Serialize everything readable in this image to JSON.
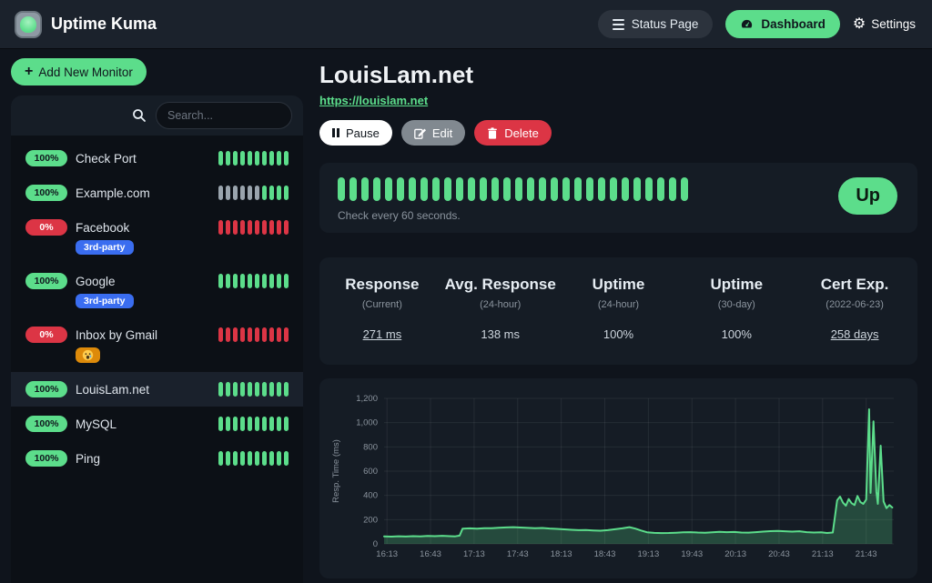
{
  "navbar": {
    "brand": "Uptime Kuma",
    "status_page_label": "Status Page",
    "dashboard_label": "Dashboard",
    "settings_label": "Settings",
    "settings_icon_glyph": "⚙"
  },
  "sidebar": {
    "add_button_label": "Add New Monitor",
    "add_button_icon": "+",
    "search_placeholder": "Search...",
    "monitors": [
      {
        "name": "Check Port",
        "uptime": "100%",
        "status": "up",
        "selected": false,
        "tag": null,
        "beats": [
          "up",
          "up",
          "up",
          "up",
          "up",
          "up",
          "up",
          "up",
          "up",
          "up"
        ]
      },
      {
        "name": "Example.com",
        "uptime": "100%",
        "status": "up",
        "selected": false,
        "tag": null,
        "beats": [
          "empty",
          "empty",
          "empty",
          "empty",
          "empty",
          "empty",
          "up",
          "up",
          "up",
          "up"
        ]
      },
      {
        "name": "Facebook",
        "uptime": "0%",
        "status": "down",
        "selected": false,
        "tag": {
          "type": "text",
          "label": "3rd-party",
          "color": "#3a6df0"
        },
        "beats": [
          "down",
          "down",
          "down",
          "down",
          "down",
          "down",
          "down",
          "down",
          "down",
          "down"
        ]
      },
      {
        "name": "Google",
        "uptime": "100%",
        "status": "up",
        "selected": false,
        "tag": {
          "type": "text",
          "label": "3rd-party",
          "color": "#3a6df0"
        },
        "beats": [
          "up",
          "up",
          "up",
          "up",
          "up",
          "up",
          "up",
          "up",
          "up",
          "up"
        ]
      },
      {
        "name": "Inbox by Gmail",
        "uptime": "0%",
        "status": "down",
        "selected": false,
        "tag": {
          "type": "emoji",
          "label": "crying-face-emoji",
          "color": "#dd8a0a"
        },
        "beats": [
          "down",
          "down",
          "down",
          "down",
          "down",
          "down",
          "down",
          "down",
          "down",
          "down"
        ]
      },
      {
        "name": "LouisLam.net",
        "uptime": "100%",
        "status": "up",
        "selected": true,
        "tag": null,
        "beats": [
          "up",
          "up",
          "up",
          "up",
          "up",
          "up",
          "up",
          "up",
          "up",
          "up"
        ]
      },
      {
        "name": "MySQL",
        "uptime": "100%",
        "status": "up",
        "selected": false,
        "tag": null,
        "beats": [
          "up",
          "up",
          "up",
          "up",
          "up",
          "up",
          "up",
          "up",
          "up",
          "up"
        ]
      },
      {
        "name": "Ping",
        "uptime": "100%",
        "status": "up",
        "selected": false,
        "tag": null,
        "beats": [
          "up",
          "up",
          "up",
          "up",
          "up",
          "up",
          "up",
          "up",
          "up",
          "up"
        ]
      }
    ]
  },
  "main": {
    "title": "LouisLam.net",
    "url": "https://louislam.net",
    "buttons": {
      "pause": "Pause",
      "edit": "Edit",
      "delete": "Delete"
    },
    "heartbeat": {
      "count": 30,
      "status_label": "Up",
      "check_text": "Check every 60 seconds."
    },
    "stats": [
      {
        "label": "Response",
        "sub": "(Current)",
        "value": "271 ms",
        "link": true
      },
      {
        "label": "Avg. Response",
        "sub": "(24-hour)",
        "value": "138 ms",
        "link": false
      },
      {
        "label": "Uptime",
        "sub": "(24-hour)",
        "value": "100%",
        "link": false
      },
      {
        "label": "Uptime",
        "sub": "(30-day)",
        "value": "100%",
        "link": false
      },
      {
        "label": "Cert Exp.",
        "sub": "(2022-06-23)",
        "value": "258 days",
        "link": true
      }
    ]
  },
  "colors": {
    "accent_green": "#5cdd8b",
    "danger_red": "#dc3545",
    "tag_blue": "#3a6df0",
    "tag_orange": "#dd8a0a",
    "muted_text": "#8b949e",
    "page_bg": "#0f141c",
    "card_bg": "#151c25"
  },
  "chart_data": {
    "type": "area",
    "title": "",
    "xlabel": "",
    "ylabel": "Resp. Time (ms)",
    "ylim": [
      0,
      1200
    ],
    "xlim": [
      "16:11",
      "22:02"
    ],
    "grid": true,
    "line_color": "#5cdd8b",
    "fill_opacity": 0.24,
    "yticks": [
      0,
      200,
      400,
      600,
      800,
      1000,
      1200
    ],
    "ytick_labels": [
      "0",
      "200",
      "400",
      "600",
      "800",
      "1,000",
      "1,200"
    ],
    "xticks": [
      "16:13",
      "16:43",
      "17:13",
      "17:43",
      "18:13",
      "18:43",
      "19:13",
      "19:43",
      "20:13",
      "20:43",
      "21:13",
      "21:43"
    ],
    "points": [
      [
        "16:11",
        62
      ],
      [
        "16:16",
        60
      ],
      [
        "16:21",
        63
      ],
      [
        "16:26",
        61
      ],
      [
        "16:31",
        64
      ],
      [
        "16:36",
        62
      ],
      [
        "16:41",
        66
      ],
      [
        "16:46",
        64
      ],
      [
        "16:51",
        67
      ],
      [
        "16:56",
        64
      ],
      [
        "17:00",
        62
      ],
      [
        "17:03",
        68
      ],
      [
        "17:05",
        125
      ],
      [
        "17:10",
        128
      ],
      [
        "17:15",
        126
      ],
      [
        "17:20",
        130
      ],
      [
        "17:25",
        129
      ],
      [
        "17:30",
        133
      ],
      [
        "17:35",
        136
      ],
      [
        "17:40",
        138
      ],
      [
        "17:45",
        135
      ],
      [
        "17:50",
        132
      ],
      [
        "17:55",
        130
      ],
      [
        "18:00",
        131
      ],
      [
        "18:05",
        127
      ],
      [
        "18:10",
        124
      ],
      [
        "18:15",
        120
      ],
      [
        "18:20",
        116
      ],
      [
        "18:25",
        113
      ],
      [
        "18:30",
        114
      ],
      [
        "18:35",
        111
      ],
      [
        "18:40",
        109
      ],
      [
        "18:45",
        113
      ],
      [
        "18:50",
        121
      ],
      [
        "18:55",
        128
      ],
      [
        "19:00",
        138
      ],
      [
        "19:04",
        126
      ],
      [
        "19:08",
        110
      ],
      [
        "19:12",
        96
      ],
      [
        "19:17",
        91
      ],
      [
        "19:22",
        89
      ],
      [
        "19:27",
        90
      ],
      [
        "19:32",
        92
      ],
      [
        "19:37",
        95
      ],
      [
        "19:42",
        97
      ],
      [
        "19:47",
        94
      ],
      [
        "19:52",
        92
      ],
      [
        "19:57",
        96
      ],
      [
        "20:02",
        99
      ],
      [
        "20:07",
        97
      ],
      [
        "20:12",
        98
      ],
      [
        "20:17",
        94
      ],
      [
        "20:22",
        93
      ],
      [
        "20:27",
        97
      ],
      [
        "20:32",
        101
      ],
      [
        "20:37",
        105
      ],
      [
        "20:42",
        107
      ],
      [
        "20:47",
        104
      ],
      [
        "20:52",
        101
      ],
      [
        "20:57",
        104
      ],
      [
        "21:02",
        97
      ],
      [
        "21:07",
        94
      ],
      [
        "21:12",
        95
      ],
      [
        "21:16",
        90
      ],
      [
        "21:20",
        94
      ],
      [
        "21:23",
        360
      ],
      [
        "21:25",
        390
      ],
      [
        "21:27",
        340
      ],
      [
        "21:29",
        315
      ],
      [
        "21:31",
        370
      ],
      [
        "21:33",
        335
      ],
      [
        "21:35",
        320
      ],
      [
        "21:37",
        395
      ],
      [
        "21:39",
        345
      ],
      [
        "21:41",
        330
      ],
      [
        "21:43",
        365
      ],
      [
        "21:45",
        1110
      ],
      [
        "21:46",
        420
      ],
      [
        "21:48",
        1010
      ],
      [
        "21:50",
        430
      ],
      [
        "21:51",
        330
      ],
      [
        "21:53",
        810
      ],
      [
        "21:55",
        350
      ],
      [
        "21:57",
        295
      ],
      [
        "21:59",
        320
      ],
      [
        "22:01",
        300
      ]
    ]
  }
}
